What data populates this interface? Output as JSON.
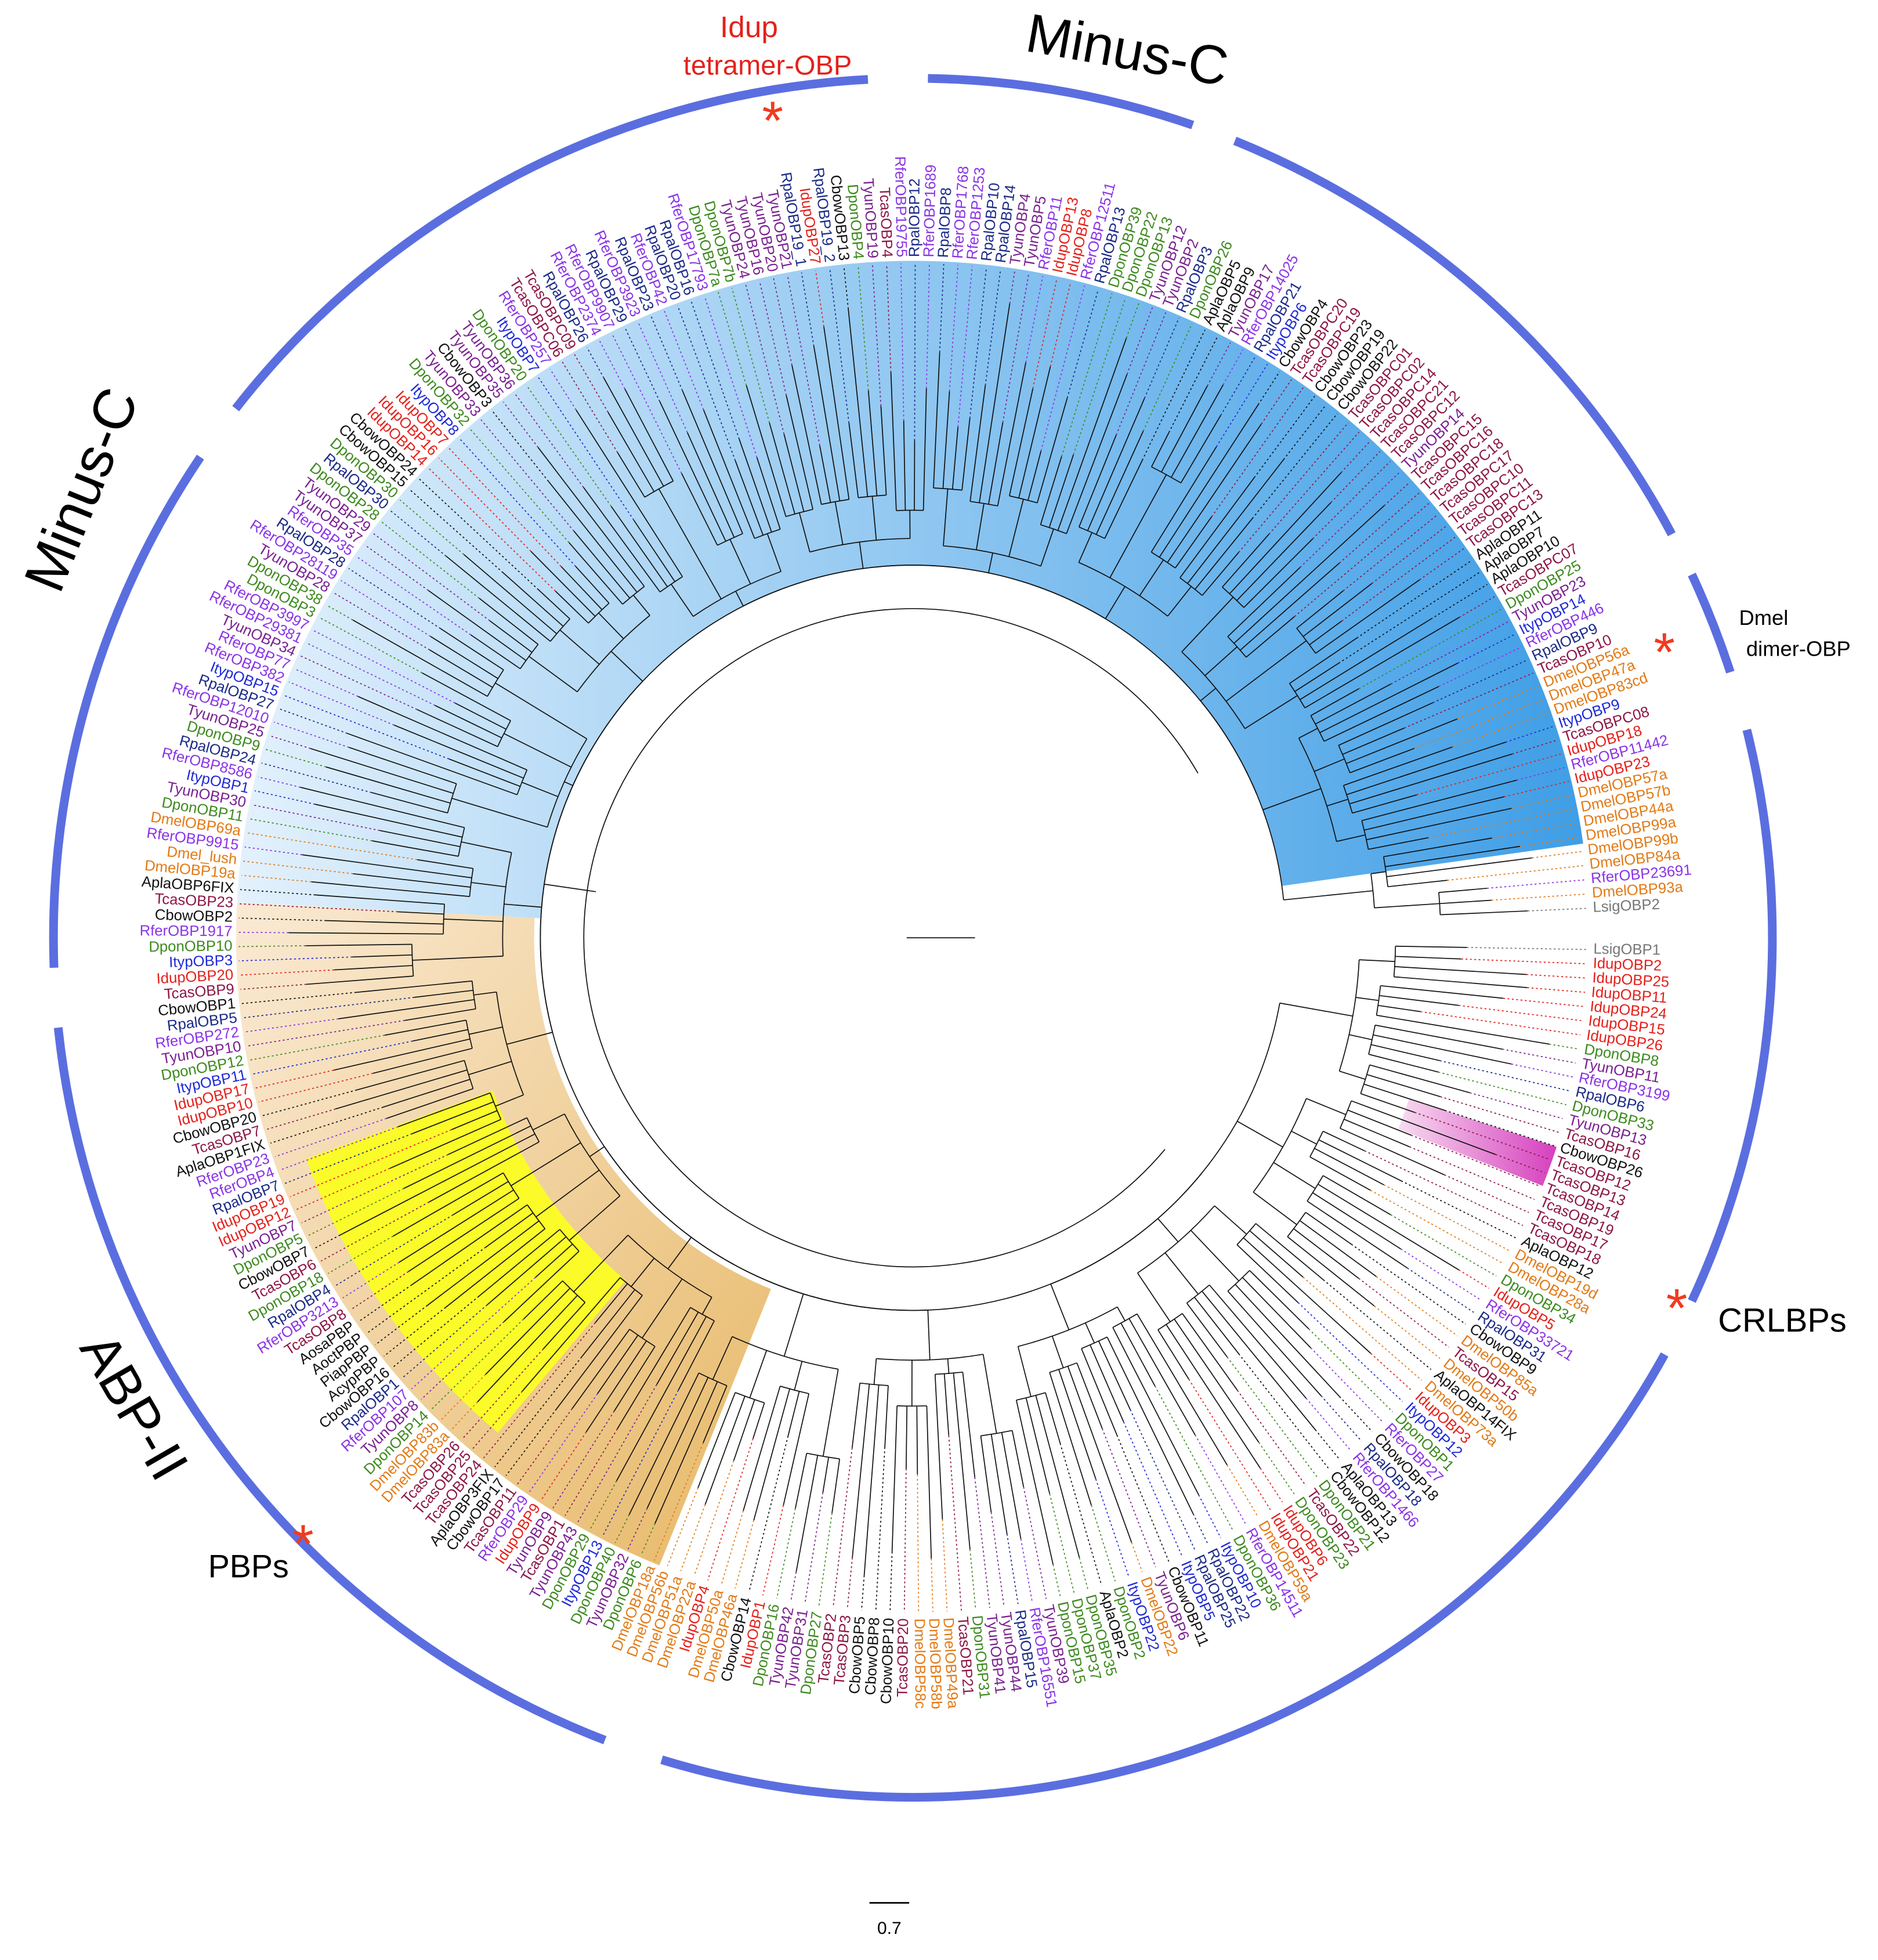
{
  "group_labels": {
    "minus_c_top": "Minus-C",
    "minus_c_left": "Minus-C",
    "abp_ii": "ABP-II",
    "pbps": "PBPs",
    "crlbps": "CRLBPs",
    "idup": "Idup",
    "tetramer": "tetramer-OBP",
    "dmel": "Dmel",
    "dimer": "dimer-OBP"
  },
  "scale_bar": "0.7",
  "species_colors": {
    "Idup": "#e3211c",
    "Rfer": "#8a34e6",
    "Ityp": "#1f2ad6",
    "Dpon": "#3d8a1f",
    "Tyun": "#7a2190",
    "Tcas": "#8c1746",
    "Dmel": "#e27a16",
    "Rpal": "#1b2a86",
    "Lsig": "#777777",
    "default": "#111111"
  },
  "leaves": [
    "LsigOBP1",
    "IdupOBP2",
    "IdupOBP25",
    "IdupOBP11",
    "IdupOBP24",
    "IdupOBP15",
    "IdupOBP26",
    "DponOBP8",
    "TyunOBP11",
    "RferOBP3199",
    "RpalOBP6",
    "DponOBP33",
    "TyunOBP13",
    "TcasOBP16",
    "CbowOBP26",
    "TcasOBP12",
    "TcasOBP13",
    "TcasOBP14",
    "TcasOBP19",
    "TcasOBP17",
    "TcasOBP18",
    "AplaOBP12",
    "DmelOBP19d",
    "DmelOBP28a",
    "DponOBP34",
    "IdupOBP5",
    "RferOBP33721",
    "RpalOBP31",
    "CbowOBP9",
    "DmelOBP85a",
    "TcasOBP15",
    "DmelOBP50b",
    "AplaOBP14FIX",
    "DmelOBP73a",
    "IdupOBP3",
    "ItypOBP12",
    "DponOBP1",
    "RferOBP27",
    "CbowOBP18",
    "RpalOBP18",
    "RferOBP1466",
    "AplaOBP13",
    "CbowOBP12",
    "DponOBP21",
    "TcasOBP22",
    "DponOBP23",
    "IdupOBP6",
    "IdupOBP21",
    "DmelOBP59a",
    "RferOBP14511",
    "DponOBP36",
    "ItypOBP10",
    "RpalOBP22",
    "RpalOBP25",
    "ItypOBP5",
    "CbowOBP11",
    "TyunOBP6",
    "DmelOBP22",
    "ItypOBP22",
    "DponOBP2",
    "AplaOBP2",
    "DponOBP35",
    "DponOBP37",
    "DponOBP15",
    "TyunOBP39",
    "RferOBP16551",
    "RpalOBP15",
    "TyunOBP44",
    "TyunOBP41",
    "DponOBP31",
    "TcasOBP21",
    "DmelOBP49a",
    "DmelOBP58b",
    "DmelOBP58c",
    "TcasOBP20",
    "CbowOBP10",
    "CbowOBP8",
    "CbowOBP5",
    "TcasOBP3",
    "TcasOBP2",
    "DponOBP27",
    "TyunOBP31",
    "TyunOBP42",
    "DponOBP16",
    "IdupOBP1",
    "CbowOBP14",
    "DmelOBP46a",
    "DmelOBP50a",
    "IdupOBP4",
    "DmelOBP22a",
    "DmelOBP51a",
    "DmelOBP56b",
    "DmelOBP18a",
    "DponOBP6",
    "TyunOBP32",
    "DponOBP40",
    "ItypOBP13",
    "DponOBP29",
    "TyunOBP43",
    "TcasOBP1",
    "TyunOBP9",
    "IdupOBP9",
    "RferOBP29",
    "TcasOBP11",
    "CbowOBP17",
    "AplaOBP3FIX",
    "TcasOBP24",
    "TcasOBP25",
    "TcasOBP26",
    "DmelOBP83a",
    "DmelOBP83b",
    "DponOBP14",
    "TyunOBP8",
    "RferOBP107",
    "RpalOBP1",
    "CbowOBP16",
    "AcypPBP",
    "PiapPBP",
    "AoctPBP",
    "AosaPBP",
    "TcasOBP8",
    "RferOBP3213",
    "RpalOBP4",
    "DponOBP18",
    "TcasOBP6",
    "CbowOBP7",
    "DponOBP5",
    "TyunOBP7",
    "IdupOBP12",
    "IdupOBP19",
    "RpalOBP7",
    "RferOBP4",
    "RferOBP23",
    "AplaOBP1FIX",
    "TcasOBP7",
    "CbowOBP20",
    "IdupOBP10",
    "IdupOBP17",
    "ItypOBP11",
    "DponOBP12",
    "TyunOBP10",
    "RferOBP272",
    "RpalOBP5",
    "CbowOBP1",
    "TcasOBP9",
    "IdupOBP20",
    "ItypOBP3",
    "DponOBP10",
    "RferOBP1917",
    "CbowOBP2",
    "TcasOBP23",
    "AplaOBP6FIX",
    "DmelOBP19a",
    "Dmel_lush",
    "RferOBP9915",
    "DmelOBP69a",
    "DponOBP11",
    "TyunOBP30",
    "ItypOBP1",
    "RferOBP8586",
    "RpalOBP24",
    "DponOBP9",
    "TyunOBP25",
    "RferOBP12010",
    "RpalOBP27",
    "ItypOBP15",
    "RferOBP382",
    "RferOBP77",
    "TyunOBP34",
    "RferOBP29381",
    "RferOBP3997",
    "DponOBP3",
    "DponOBP38",
    "TyunOBP28",
    "RferOBP28119",
    "RpalOBP28",
    "RferOBP35",
    "TyunOBP37",
    "TyunOBP29",
    "DponOBP28",
    "RpalOBP30",
    "DponOBP30",
    "CbowOBP15",
    "CbowOBP24",
    "IdupOBP14",
    "IdupOBP16",
    "IdupOBP7",
    "ItypOBP8",
    "DponOBP32",
    "TyunOBP33",
    "CbowOBP3",
    "TyunOBP35",
    "TyunOBP36",
    "DponOBP20",
    "ItypOBP7",
    "RferOBP257",
    "TcasOBPC06",
    "TcasOBPC09",
    "RpalOBP26",
    "RferOBP2374",
    "RferOBP9907",
    "RpalOBP29",
    "RferOBP3923",
    "RpalOBP23",
    "RferOBP42",
    "RpalOBP20",
    "RpalOBP16",
    "RferOBP17793",
    "DponOBP7a",
    "DponOBP7b",
    "TyunOBP24",
    "TyunOBP16",
    "TyunOBP20",
    "TyunOBP21",
    "RpalOBP19_1",
    "IdupOBP27",
    "RpalOBP19_2",
    "CbowOBP13",
    "DponOBP4",
    "TyunOBP19",
    "TcasOBP4",
    "RferOBP19755",
    "RpalOBP12",
    "RferOBP1689",
    "RpalOBP8",
    "RferOBP1768",
    "RferOBP1253",
    "RpalOBP10",
    "RpalOBP14",
    "TyunOBP4",
    "TyunOBP5",
    "RferOBP11",
    "IdupOBP13",
    "IdupOBP8",
    "RferOBP12511",
    "RpalOBP13",
    "DponOBP39",
    "DponOBP22",
    "DponOBP13",
    "TyunOBP12",
    "TyunOBP2",
    "RpalOBP3",
    "DponOBP26",
    "AplaOBP5",
    "AplaOBP9",
    "TyunOBP17",
    "RferOBP14025",
    "RpalOBP21",
    "ItypOBP6",
    "CbowOBP4",
    "TcasOBPC20",
    "TcasOBPC19",
    "CbowOBP23",
    "CbowOBP19",
    "CbowOBP22",
    "TcasOBPC01",
    "TcasOBPC02",
    "TcasOBPC14",
    "TcasOBPC21",
    "TcasOBPC12",
    "TyunOBP14",
    "TcasOBPC15",
    "TcasOBPC16",
    "TcasOBPC18",
    "TcasOBPC17",
    "TcasOBPC10",
    "TcasOBPC11",
    "TcasOBPC13",
    "AplaOBP11",
    "AplaOBP7",
    "AplaOBP10",
    "TcasOBPC07",
    "DponOBP25",
    "TyunOBP23",
    "ItypOBP14",
    "RferOBP446",
    "RpalOBP9",
    "TcasOBP10",
    "DmelOBP56a",
    "DmelOBP47a",
    "DmelOBP83cd",
    "ItypOBP9",
    "TcasOBPC08",
    "IdupOBP18",
    "RferOBP11442",
    "IdupOBP23",
    "DmelOBP57a",
    "DmelOBP57b",
    "DmelOBP44a",
    "DmelOBP99a",
    "DmelOBP99b",
    "DmelOBP84a",
    "RferOBP23691",
    "DmelOBP93a",
    "LsigOBP2"
  ]
}
